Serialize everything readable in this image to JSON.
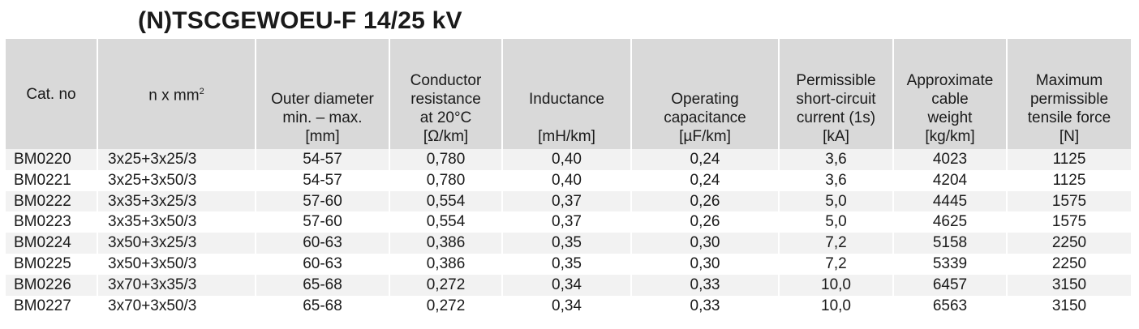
{
  "title": "(N)TSCGEWOEU-F 14/25 kV",
  "headers": {
    "cat_no": "Cat. no",
    "n_x_mm": "n x mm",
    "n_x_mm_sup": "2",
    "outer_diameter": [
      "Outer diameter",
      "min. – max.",
      "[mm]"
    ],
    "conductor_resistance": [
      "Conductor",
      "resistance",
      "at 20°C",
      "[Ω/km]"
    ],
    "inductance": [
      "Inductance",
      "[mH/km]"
    ],
    "operating_capacitance": [
      "Operating",
      "capacitance",
      "[µF/km]"
    ],
    "short_circuit": [
      "Permissible",
      "short-circuit",
      "current (1s)",
      "[kA]"
    ],
    "cable_weight": [
      "Approximate",
      "cable",
      "weight",
      "[kg/km]"
    ],
    "tensile_force": [
      "Maximum",
      "permissible",
      "tensile force",
      "[N]"
    ]
  },
  "rows": [
    [
      "BM0220",
      "3x25+3x25/3",
      "54-57",
      "0,780",
      "0,40",
      "0,24",
      "3,6",
      "4023",
      "1125"
    ],
    [
      "BM0221",
      "3x25+3x50/3",
      "54-57",
      "0,780",
      "0,40",
      "0,24",
      "3,6",
      "4204",
      "1125"
    ],
    [
      "BM0222",
      "3x35+3x25/3",
      "57-60",
      "0,554",
      "0,37",
      "0,26",
      "5,0",
      "4445",
      "1575"
    ],
    [
      "BM0223",
      "3x35+3x50/3",
      "57-60",
      "0,554",
      "0,37",
      "0,26",
      "5,0",
      "4625",
      "1575"
    ],
    [
      "BM0224",
      "3x50+3x25/3",
      "60-63",
      "0,386",
      "0,35",
      "0,30",
      "7,2",
      "5158",
      "2250"
    ],
    [
      "BM0225",
      "3x50+3x50/3",
      "60-63",
      "0,386",
      "0,35",
      "0,30",
      "7,2",
      "5339",
      "2250"
    ],
    [
      "BM0226",
      "3x70+3x35/3",
      "65-68",
      "0,272",
      "0,34",
      "0,33",
      "10,0",
      "6457",
      "3150"
    ],
    [
      "BM0227",
      "3x70+3x50/3",
      "65-68",
      "0,272",
      "0,34",
      "0,33",
      "10,0",
      "6563",
      "3150"
    ]
  ],
  "colors": {
    "header_bg": "#d9d9d9",
    "row_odd": "#f2f2f2",
    "row_even": "#ffffff"
  }
}
